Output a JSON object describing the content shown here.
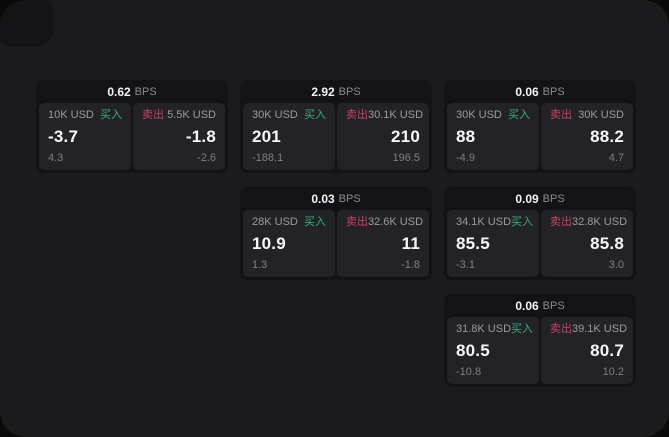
{
  "theme": {
    "outer_bg": "#0a0a0b",
    "panel_bg": "#1b1b1d",
    "card_bg": "#131315",
    "subpanel_bg": "#232327",
    "buy_color": "#3aae7d",
    "sell_color": "#c64265",
    "text_primary": "#f6f7f8",
    "text_muted": "#9a9aa1",
    "text_dim": "#7e7e85"
  },
  "labels": {
    "bps": "BPS",
    "buy": "买入",
    "sell": "卖出"
  },
  "cards": [
    {
      "bps": "0.62",
      "buy": {
        "amount": "10K USD",
        "price": "-3.7",
        "sub": "4.3"
      },
      "sell": {
        "amount": "5.5K USD",
        "price": "-1.8",
        "sub": "-2.6"
      }
    },
    {
      "bps": "2.92",
      "buy": {
        "amount": "30K USD",
        "price": "201",
        "sub": "-188.1"
      },
      "sell": {
        "amount": "30.1K USD",
        "price": "210",
        "sub": "196.5"
      }
    },
    {
      "bps": "0.06",
      "buy": {
        "amount": "30K USD",
        "price": "88",
        "sub": "-4.9"
      },
      "sell": {
        "amount": "30K USD",
        "price": "88.2",
        "sub": "4.7"
      }
    },
    {
      "bps": "0.03",
      "buy": {
        "amount": "28K USD",
        "price": "10.9",
        "sub": "1.3"
      },
      "sell": {
        "amount": "32.6K USD",
        "price": "11",
        "sub": "-1.8"
      }
    },
    {
      "bps": "0.09",
      "buy": {
        "amount": "34.1K USD",
        "price": "85.5",
        "sub": "-3.1"
      },
      "sell": {
        "amount": "32.8K USD",
        "price": "85.8",
        "sub": "3.0"
      }
    },
    {
      "bps": "0.06",
      "buy": {
        "amount": "31.8K USD",
        "price": "80.5",
        "sub": "-10.8"
      },
      "sell": {
        "amount": "39.1K USD",
        "price": "80.7",
        "sub": "10.2"
      }
    }
  ]
}
